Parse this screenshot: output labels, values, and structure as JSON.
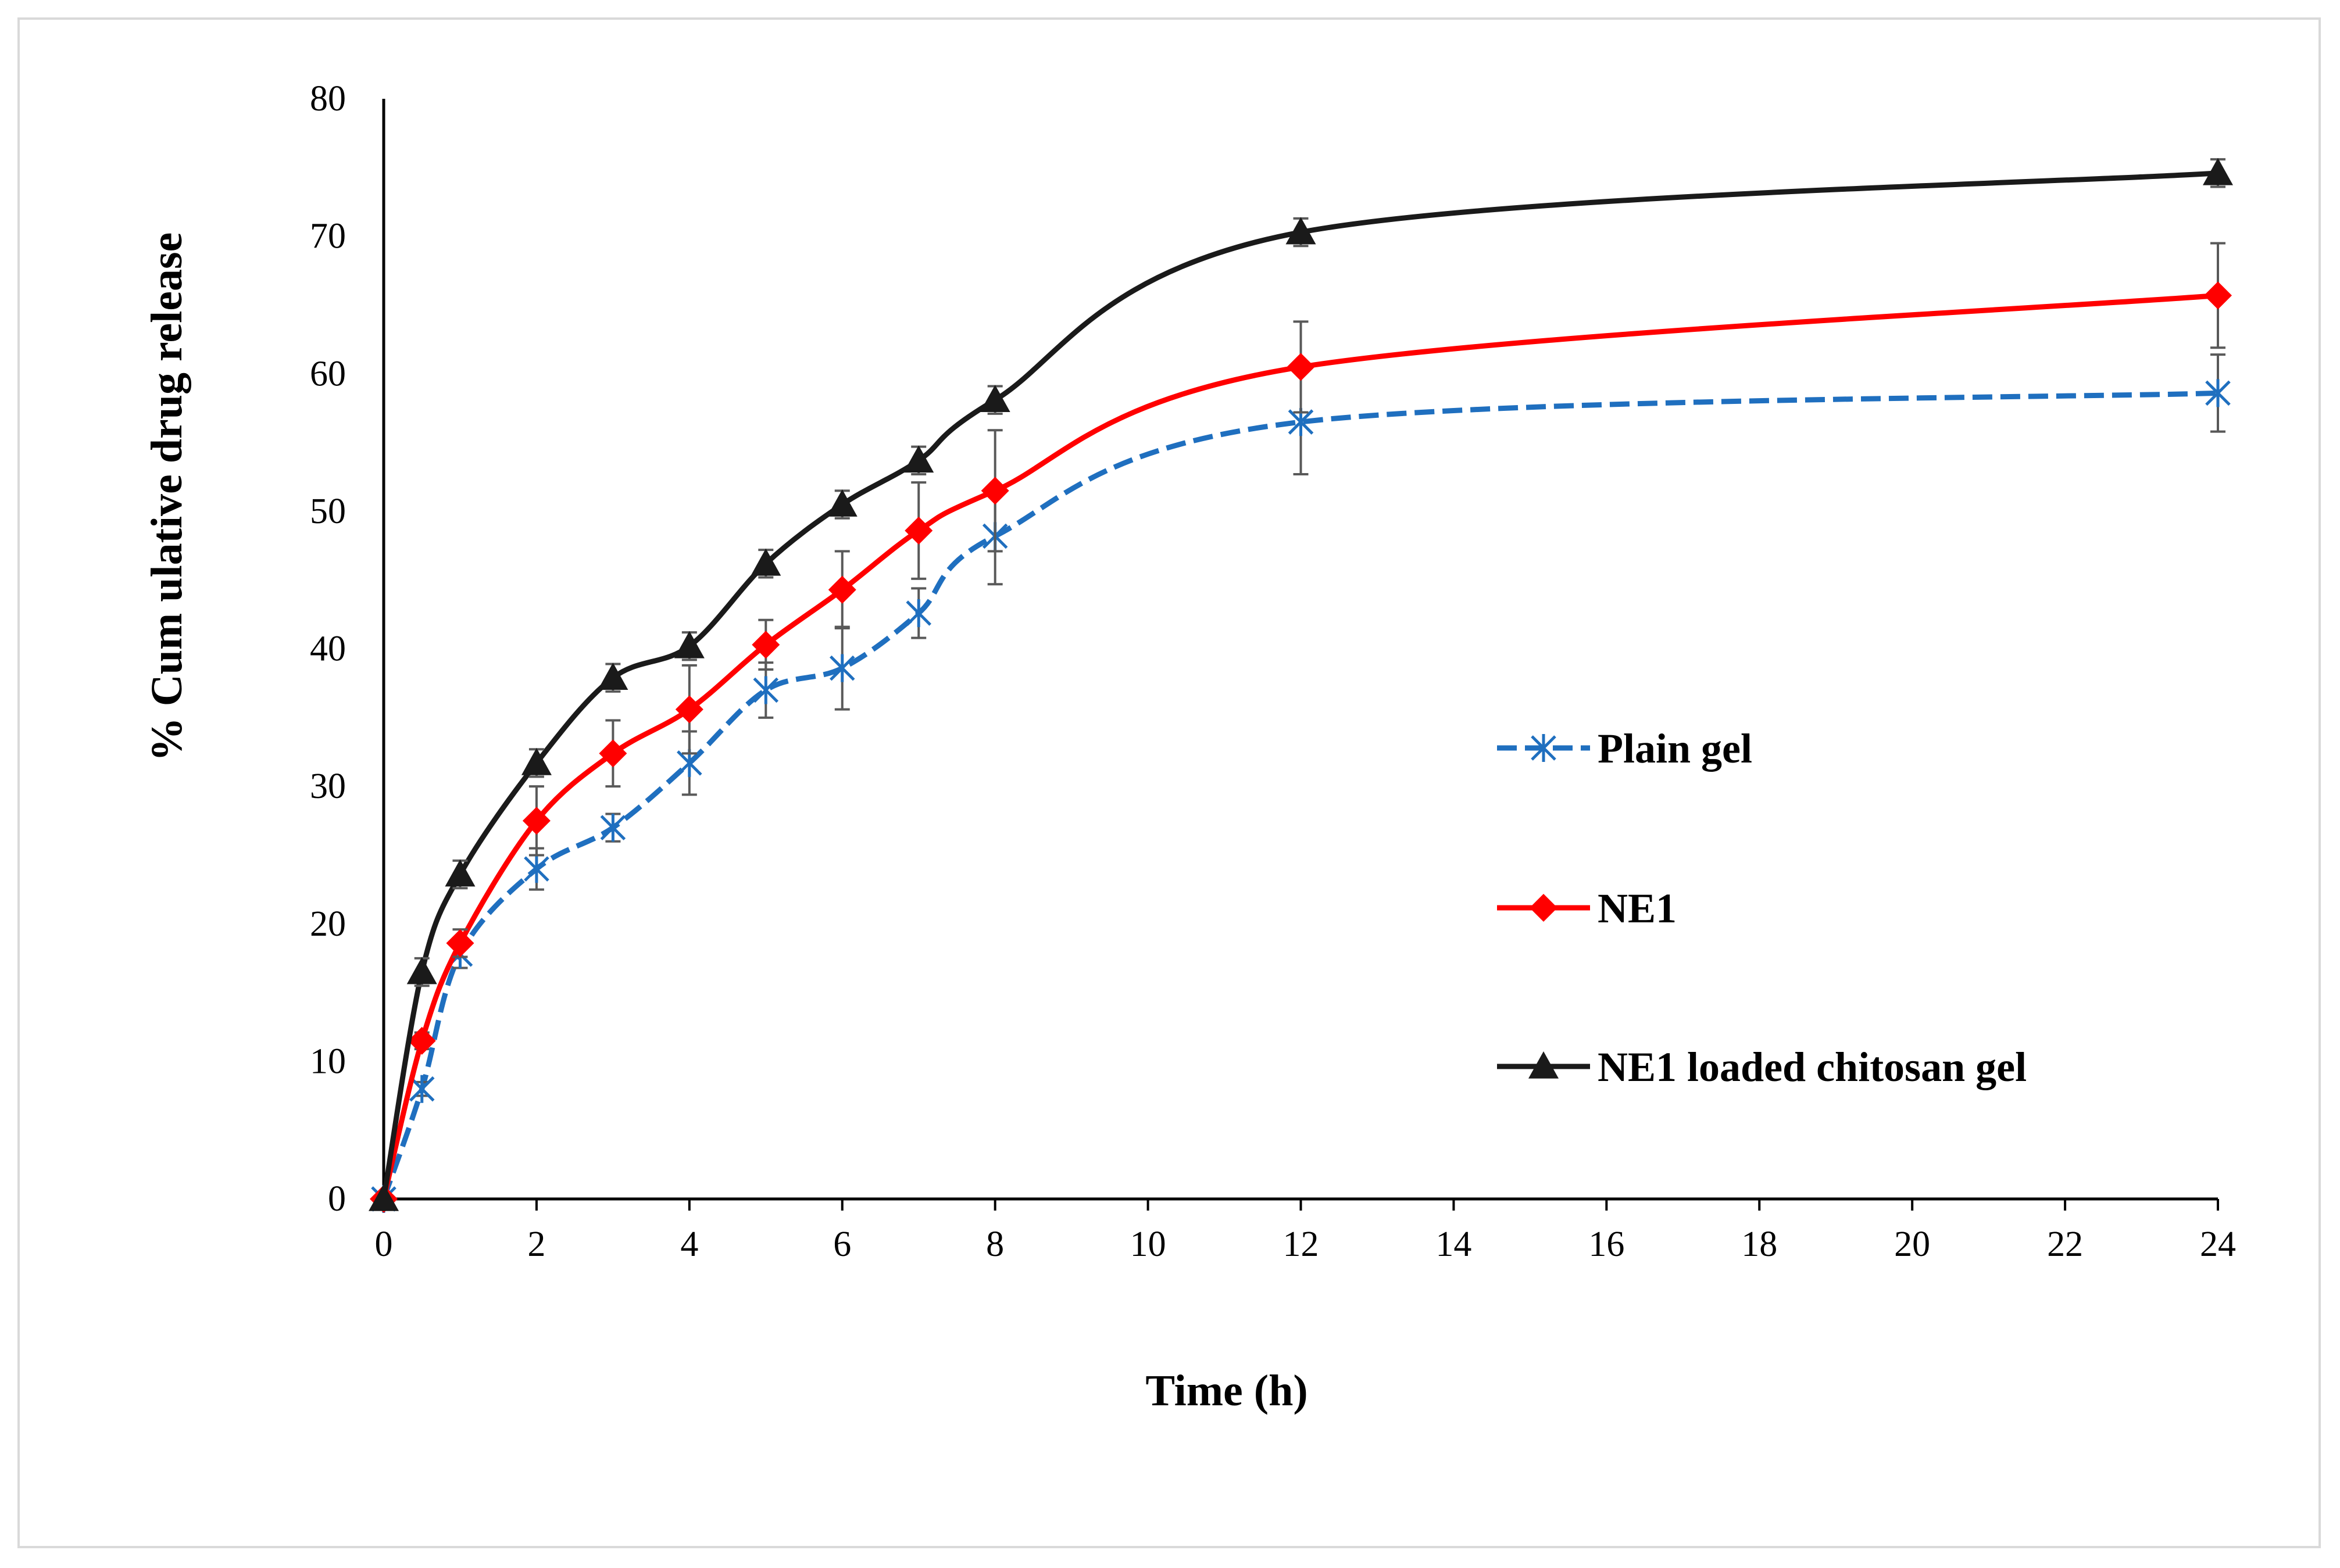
{
  "chart_data": {
    "type": "line",
    "title": "",
    "xlabel": "Time (h)",
    "ylabel": "% Cum ulative drug release",
    "xlim": [
      0,
      24
    ],
    "ylim": [
      0,
      80
    ],
    "xticks": [
      0,
      2,
      4,
      6,
      8,
      10,
      12,
      14,
      16,
      18,
      20,
      22,
      24
    ],
    "yticks": [
      0,
      10,
      20,
      30,
      40,
      50,
      60,
      70,
      80
    ],
    "grid": false,
    "legend_position": "right",
    "x": [
      0,
      0.5,
      1,
      2,
      3,
      4,
      5,
      6,
      7,
      8,
      12,
      24
    ],
    "series": [
      {
        "name": "Plain gel",
        "color": "#1f6fbf",
        "marker": "asterisk",
        "line_style": "dashed",
        "values": [
          0,
          8,
          17.8,
          24,
          27,
          31.7,
          37,
          38.6,
          42.6,
          48.2,
          56.5,
          58.6
        ],
        "errors": [
          0,
          0.5,
          1,
          1.5,
          1,
          2.3,
          2,
          3,
          1.8,
          3.5,
          3.8,
          2.8
        ]
      },
      {
        "name": "NE1",
        "color": "#ff0000",
        "marker": "diamond",
        "line_style": "solid",
        "values": [
          0,
          11.5,
          18.6,
          27.5,
          32.4,
          35.6,
          40.3,
          44.3,
          48.6,
          51.5,
          60.5,
          65.7
        ],
        "errors": [
          0,
          0.6,
          1,
          2.5,
          2.4,
          3.2,
          1.8,
          2.8,
          3.5,
          4.4,
          3.3,
          3.8
        ]
      },
      {
        "name": "NE1 loaded chitosan gel",
        "color": "#1a1a1a",
        "marker": "triangle",
        "line_style": "solid",
        "values": [
          0,
          16.5,
          23.6,
          31.7,
          37.9,
          40.2,
          46.2,
          50.5,
          53.7,
          58.1,
          70.3,
          74.6
        ],
        "errors": [
          0,
          1,
          1,
          1,
          1,
          1,
          1,
          1,
          1,
          1,
          1,
          1
        ]
      }
    ]
  }
}
